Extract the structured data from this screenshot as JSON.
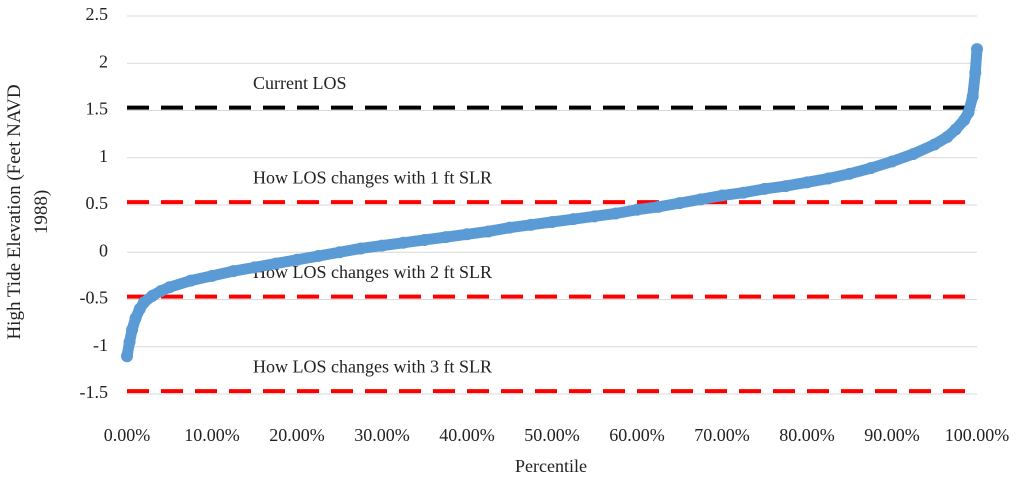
{
  "chart_data": {
    "type": "scatter",
    "x_label": "Percentile",
    "y_label": "High Tide Elevation (Feet NAVD 1988)",
    "xlim": [
      0,
      100
    ],
    "xticks": [
      {
        "value": 0,
        "label": "0.00%"
      },
      {
        "value": 10,
        "label": "10.00%"
      },
      {
        "value": 20,
        "label": "20.00%"
      },
      {
        "value": 30,
        "label": "30.00%"
      },
      {
        "value": 40,
        "label": "40.00%"
      },
      {
        "value": 50,
        "label": "50.00%"
      },
      {
        "value": 60,
        "label": "60.00%"
      },
      {
        "value": 70,
        "label": "70.00%"
      },
      {
        "value": 80,
        "label": "80.00%"
      },
      {
        "value": 90,
        "label": "90.00%"
      },
      {
        "value": 100,
        "label": "100.00%"
      }
    ],
    "ylim": [
      -1.5,
      2.5
    ],
    "yticks": [
      -1.5,
      -1,
      -0.5,
      0,
      0.5,
      1,
      1.5,
      2,
      2.5
    ],
    "grid": true,
    "series": [
      {
        "color": "#5b9bd5",
        "x": [
          0,
          0.3,
          0.6,
          1,
          1.5,
          2,
          3,
          4,
          5,
          7.5,
          10,
          12.5,
          15,
          17.5,
          20,
          22.5,
          25,
          27.5,
          30,
          32.5,
          35,
          37.5,
          40,
          42.5,
          45,
          47.5,
          50,
          52.5,
          55,
          57.5,
          60,
          62.5,
          65,
          67.5,
          70,
          72.5,
          75,
          77.5,
          80,
          82.5,
          85,
          87.5,
          90,
          92.5,
          95,
          96.5,
          97.5,
          98.5,
          99,
          99.5,
          99.8,
          100
        ],
        "values": [
          -1.1,
          -0.95,
          -0.82,
          -0.7,
          -0.6,
          -0.53,
          -0.46,
          -0.41,
          -0.37,
          -0.3,
          -0.25,
          -0.2,
          -0.16,
          -0.12,
          -0.08,
          -0.04,
          0,
          0.04,
          0.07,
          0.1,
          0.13,
          0.16,
          0.19,
          0.22,
          0.26,
          0.29,
          0.32,
          0.35,
          0.38,
          0.41,
          0.45,
          0.48,
          0.52,
          0.56,
          0.6,
          0.63,
          0.67,
          0.7,
          0.74,
          0.78,
          0.83,
          0.89,
          0.96,
          1.04,
          1.14,
          1.22,
          1.3,
          1.4,
          1.48,
          1.65,
          1.9,
          2.15
        ]
      }
    ],
    "reference_lines": [
      {
        "label": "Current LOS",
        "value": 1.53,
        "color": "#000000"
      },
      {
        "label": "How LOS changes with 1 ft SLR",
        "value": 0.53,
        "color": "#ff0000"
      },
      {
        "label": "How LOS changes with 2 ft SLR",
        "value": -0.47,
        "color": "#ff0000"
      },
      {
        "label": "How LOS changes with 3 ft SLR",
        "value": -1.47,
        "color": "#ff0000"
      }
    ]
  }
}
